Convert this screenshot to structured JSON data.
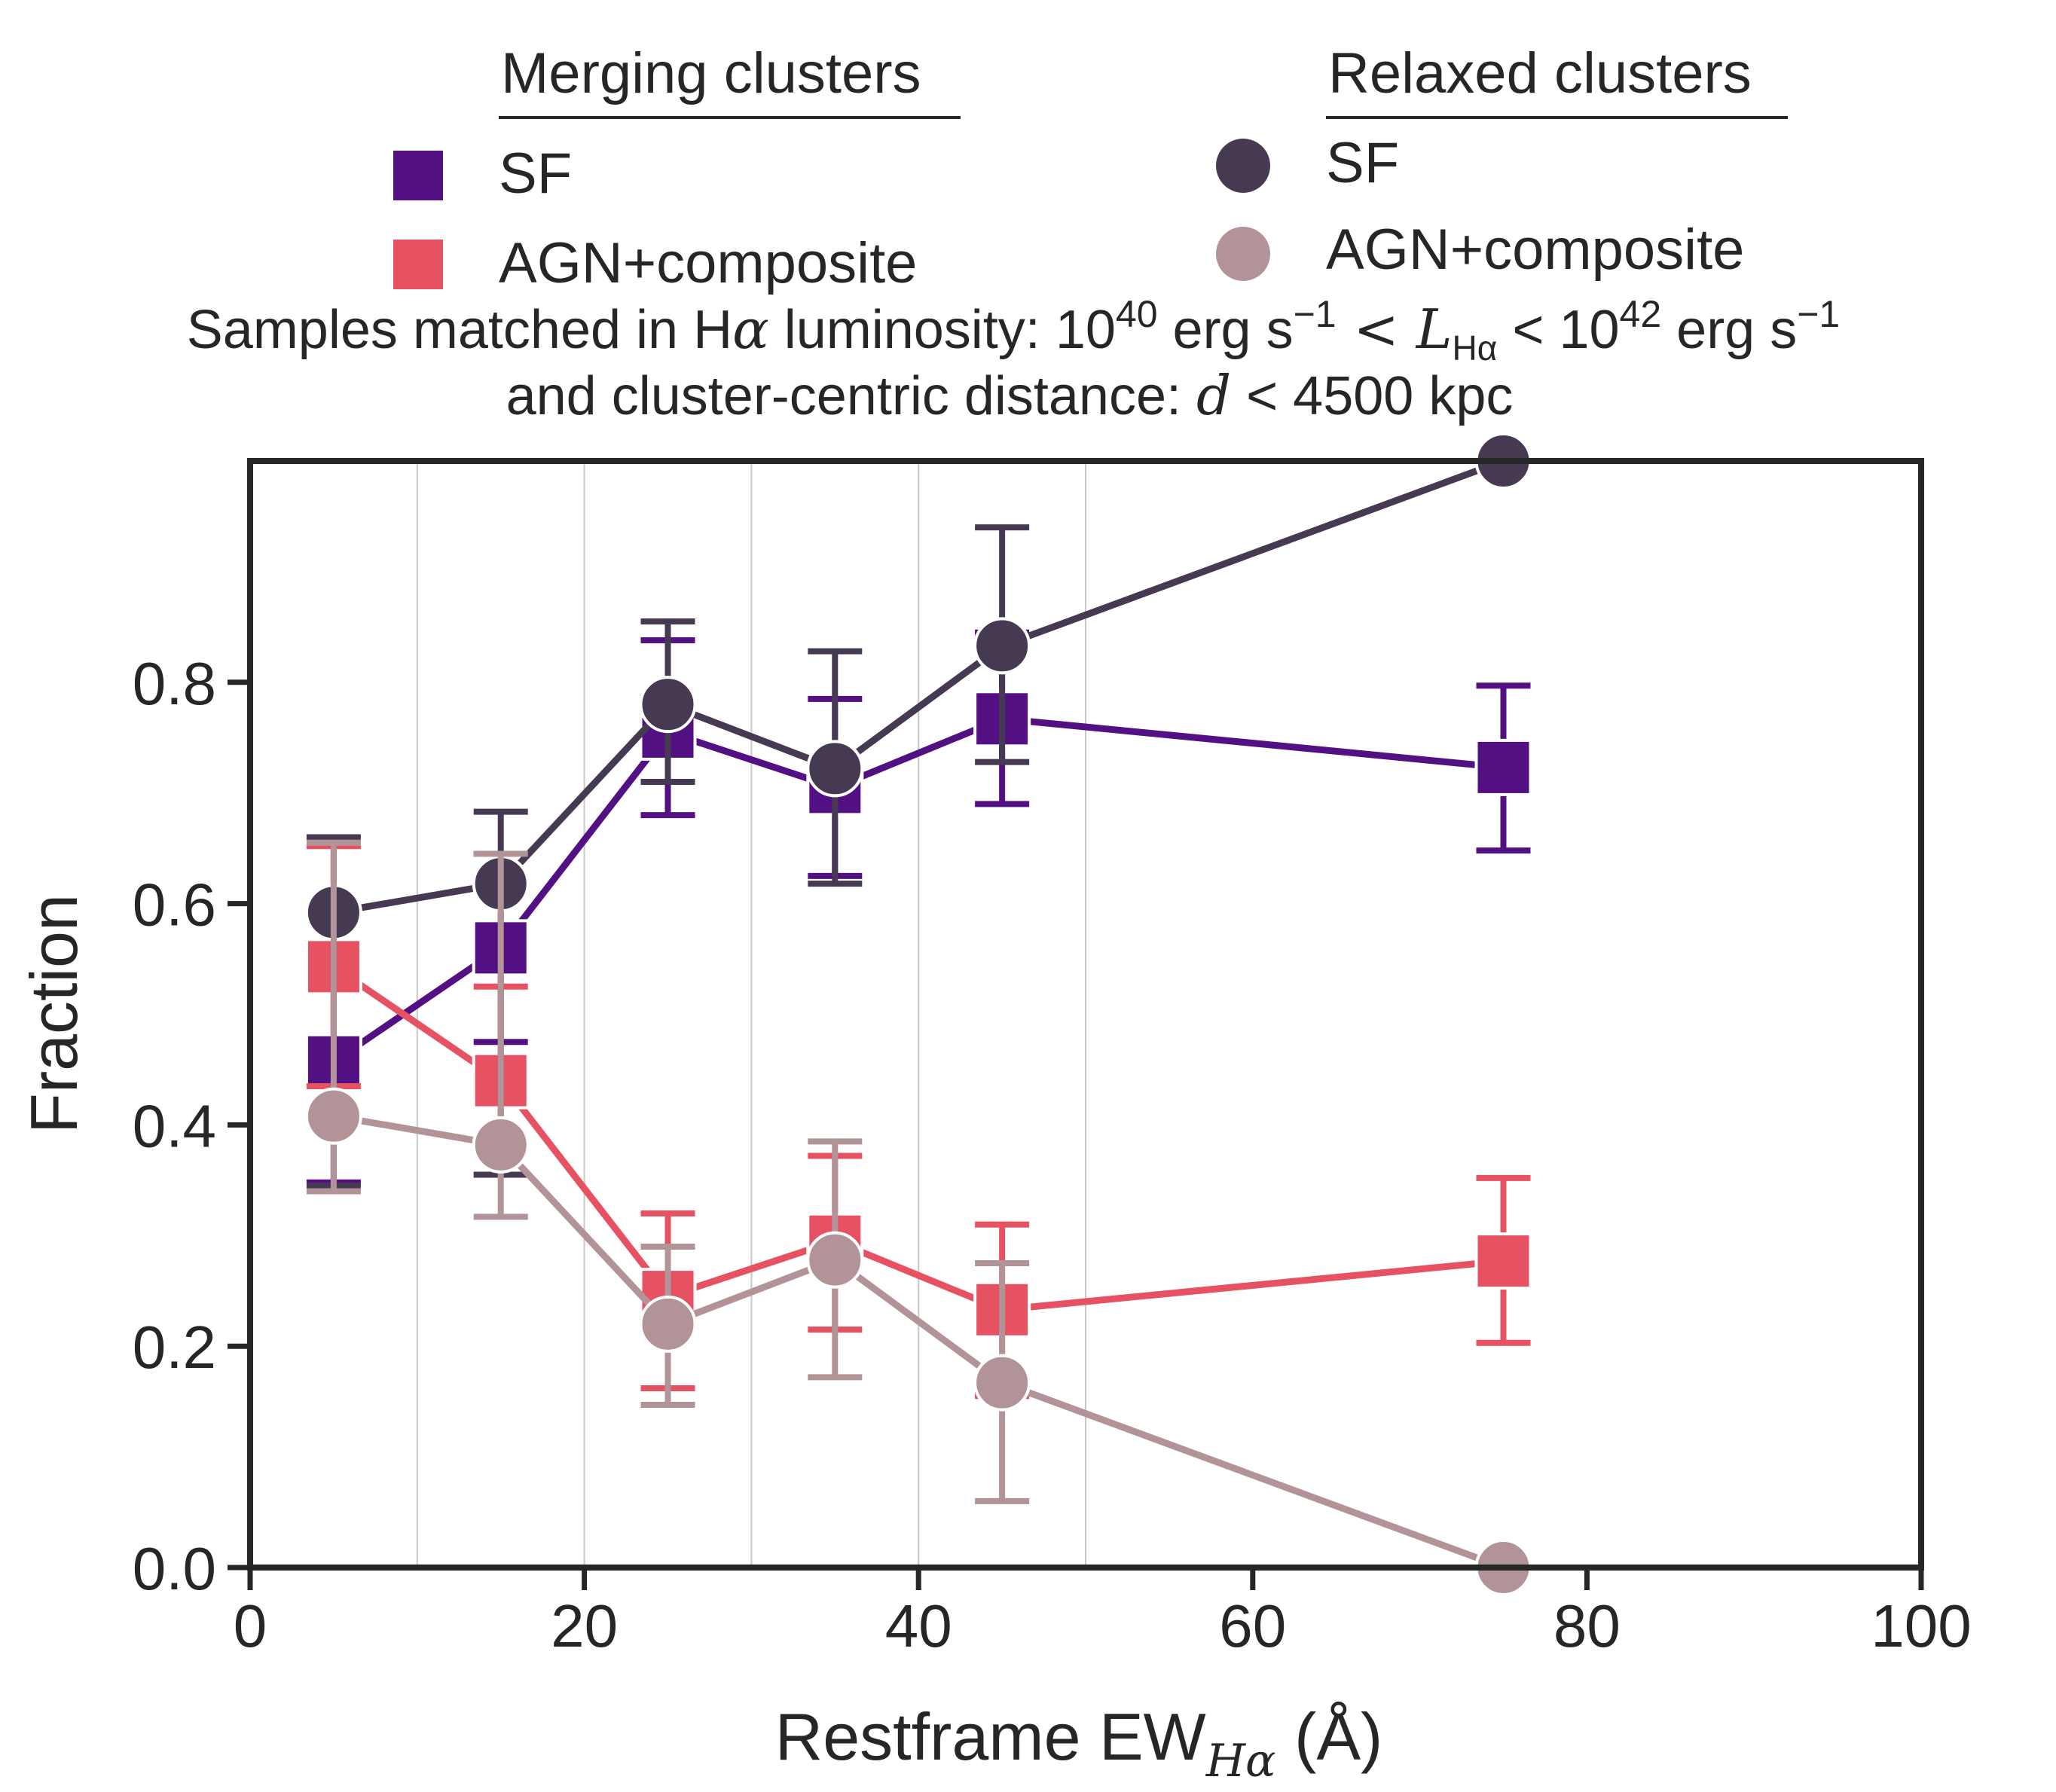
{
  "chart_data": {
    "type": "line",
    "title_line1": {
      "prefix": "Samples matched in H",
      "alpha": "α",
      "mid": " luminosity: 10",
      "exp1": "40",
      "unit1": " erg s",
      "minus1": "−1",
      "lt1": " < ",
      "L": "L",
      "Lsub": "Hα",
      "lt2": " < 10",
      "exp2": "42",
      "unit2": " erg s",
      "minus2": "−1"
    },
    "title_line2": {
      "prefix": "and cluster-centric distance: ",
      "d": "d",
      "suffix": " < 4500 kpc"
    },
    "xlabel": {
      "text": "Restframe EW",
      "sub": "Hα",
      "unit": " (Å)"
    },
    "ylabel": "Fraction",
    "xlim": [
      0,
      100
    ],
    "ylim": [
      0,
      1.0
    ],
    "xticks": [
      "0",
      "20",
      "40",
      "60",
      "80",
      "100"
    ],
    "yticks": [
      "0.0",
      "0.2",
      "0.4",
      "0.6",
      "0.8"
    ],
    "xtick_values": [
      0,
      20,
      40,
      60,
      80,
      100
    ],
    "ytick_values": [
      0.0,
      0.2,
      0.4,
      0.6,
      0.8
    ],
    "vertical_grid": [
      10,
      20,
      30,
      40,
      50
    ],
    "legend": {
      "merging_title": "Merging clusters",
      "relaxed_title": "Relaxed clusters",
      "merging_sf": "SF",
      "merging_agn": "AGN+composite",
      "relaxed_sf": "SF",
      "relaxed_agn": "AGN+composite"
    },
    "series": [
      {
        "key": "merging-sf",
        "group": "Merging clusters",
        "name": "SF",
        "marker": "square",
        "color": "#531082",
        "x": [
          5,
          15,
          25,
          35,
          45,
          75
        ],
        "y": [
          0.457,
          0.56,
          0.755,
          0.705,
          0.767,
          0.723
        ],
        "err_low": [
          0.348,
          0.475,
          0.68,
          0.625,
          0.69,
          0.648
        ],
        "err_high": [
          0.565,
          0.645,
          0.838,
          0.785,
          0.845,
          0.797
        ]
      },
      {
        "key": "merging-agn",
        "group": "Merging clusters",
        "name": "AGN+composite",
        "marker": "square",
        "color": "#e75263",
        "x": [
          5,
          15,
          25,
          35,
          45,
          75
        ],
        "y": [
          0.543,
          0.44,
          0.245,
          0.295,
          0.233,
          0.277
        ],
        "err_low": [
          0.435,
          0.355,
          0.162,
          0.215,
          0.155,
          0.203
        ],
        "err_high": [
          0.652,
          0.525,
          0.32,
          0.372,
          0.31,
          0.352
        ]
      },
      {
        "key": "relaxed-sf",
        "group": "Relaxed clusters",
        "name": "SF",
        "marker": "circle",
        "color": "#463a53",
        "x": [
          5,
          15,
          25,
          35,
          45,
          75
        ],
        "y": [
          0.592,
          0.618,
          0.78,
          0.722,
          0.833,
          1.0
        ],
        "err_low": [
          0.345,
          0.355,
          0.71,
          0.618,
          0.728,
          1.0
        ],
        "err_high": [
          0.66,
          0.683,
          0.855,
          0.828,
          0.94,
          1.0
        ]
      },
      {
        "key": "relaxed-agn",
        "group": "Relaxed clusters",
        "name": "AGN+composite",
        "marker": "circle",
        "color": "#b29398",
        "x": [
          5,
          15,
          25,
          35,
          45,
          75
        ],
        "y": [
          0.408,
          0.382,
          0.22,
          0.278,
          0.167,
          0.0
        ],
        "err_low": [
          0.34,
          0.317,
          0.147,
          0.172,
          0.06,
          0.0
        ],
        "err_high": [
          0.655,
          0.645,
          0.29,
          0.385,
          0.275,
          0.0
        ]
      }
    ]
  }
}
